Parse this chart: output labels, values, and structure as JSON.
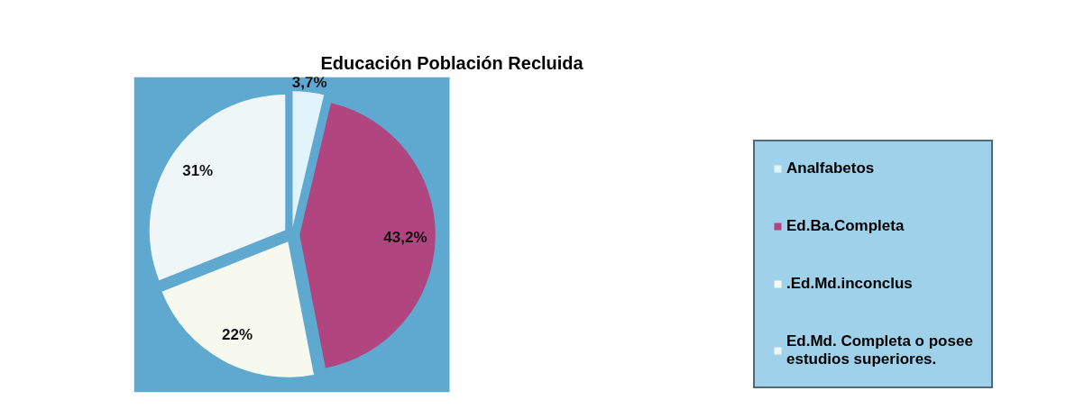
{
  "chart_data": {
    "type": "pie",
    "title": "Educación Población Recluida",
    "categories": [
      "Analfabetos",
      "Ed.Ba.Completa",
      ".Ed.Md.inconclus",
      "Ed.Md. Completa o posee estudios superiores."
    ],
    "values": [
      3.7,
      43.2,
      22,
      31
    ],
    "value_labels": [
      "3,7%",
      "43,2%",
      "22%",
      "31%"
    ],
    "colors": [
      "#e2f4fb",
      "#b0457f",
      "#f7f9ef",
      "#eef6f8"
    ],
    "legend": "right"
  }
}
